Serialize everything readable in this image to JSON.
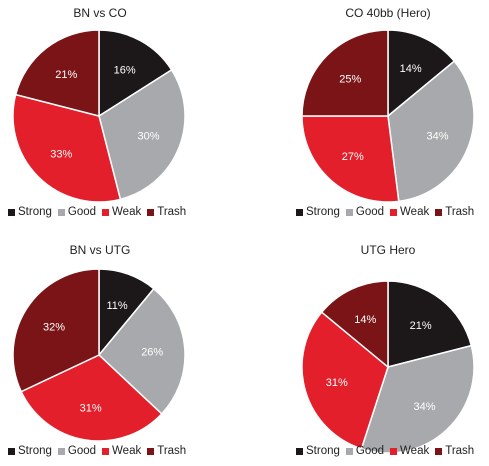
{
  "colors": {
    "Strong": "#1c1718",
    "Good": "#a7a9ac",
    "Weak": "#e21f2a",
    "Trash": "#7a1416"
  },
  "chart_data": [
    {
      "type": "pie",
      "title": "BN vs CO",
      "categories": [
        "Strong",
        "Good",
        "Weak",
        "Trash"
      ],
      "values": [
        16,
        30,
        33,
        21
      ],
      "labels": [
        "16%",
        "30%",
        "33%",
        "21%"
      ],
      "legend": "bottom"
    },
    {
      "type": "pie",
      "title": "CO 40bb (Hero)",
      "categories": [
        "Strong",
        "Good",
        "Weak",
        "Trash"
      ],
      "values": [
        14,
        34,
        27,
        25
      ],
      "labels": [
        "14%",
        "34%",
        "27%",
        "25%"
      ],
      "legend": "bottom"
    },
    {
      "type": "pie",
      "title": "BN vs UTG",
      "categories": [
        "Strong",
        "Good",
        "Weak",
        "Trash"
      ],
      "values": [
        11,
        26,
        31,
        32
      ],
      "labels": [
        "11%",
        "26%",
        "31%",
        "32%"
      ],
      "legend": "bottom"
    },
    {
      "type": "pie",
      "title": "UTG Hero",
      "categories": [
        "Strong",
        "Good",
        "Weak",
        "Trash"
      ],
      "values": [
        21,
        34,
        31,
        14
      ],
      "labels": [
        "21%",
        "34%",
        "31%",
        "14%"
      ],
      "legend": "bottom"
    }
  ]
}
